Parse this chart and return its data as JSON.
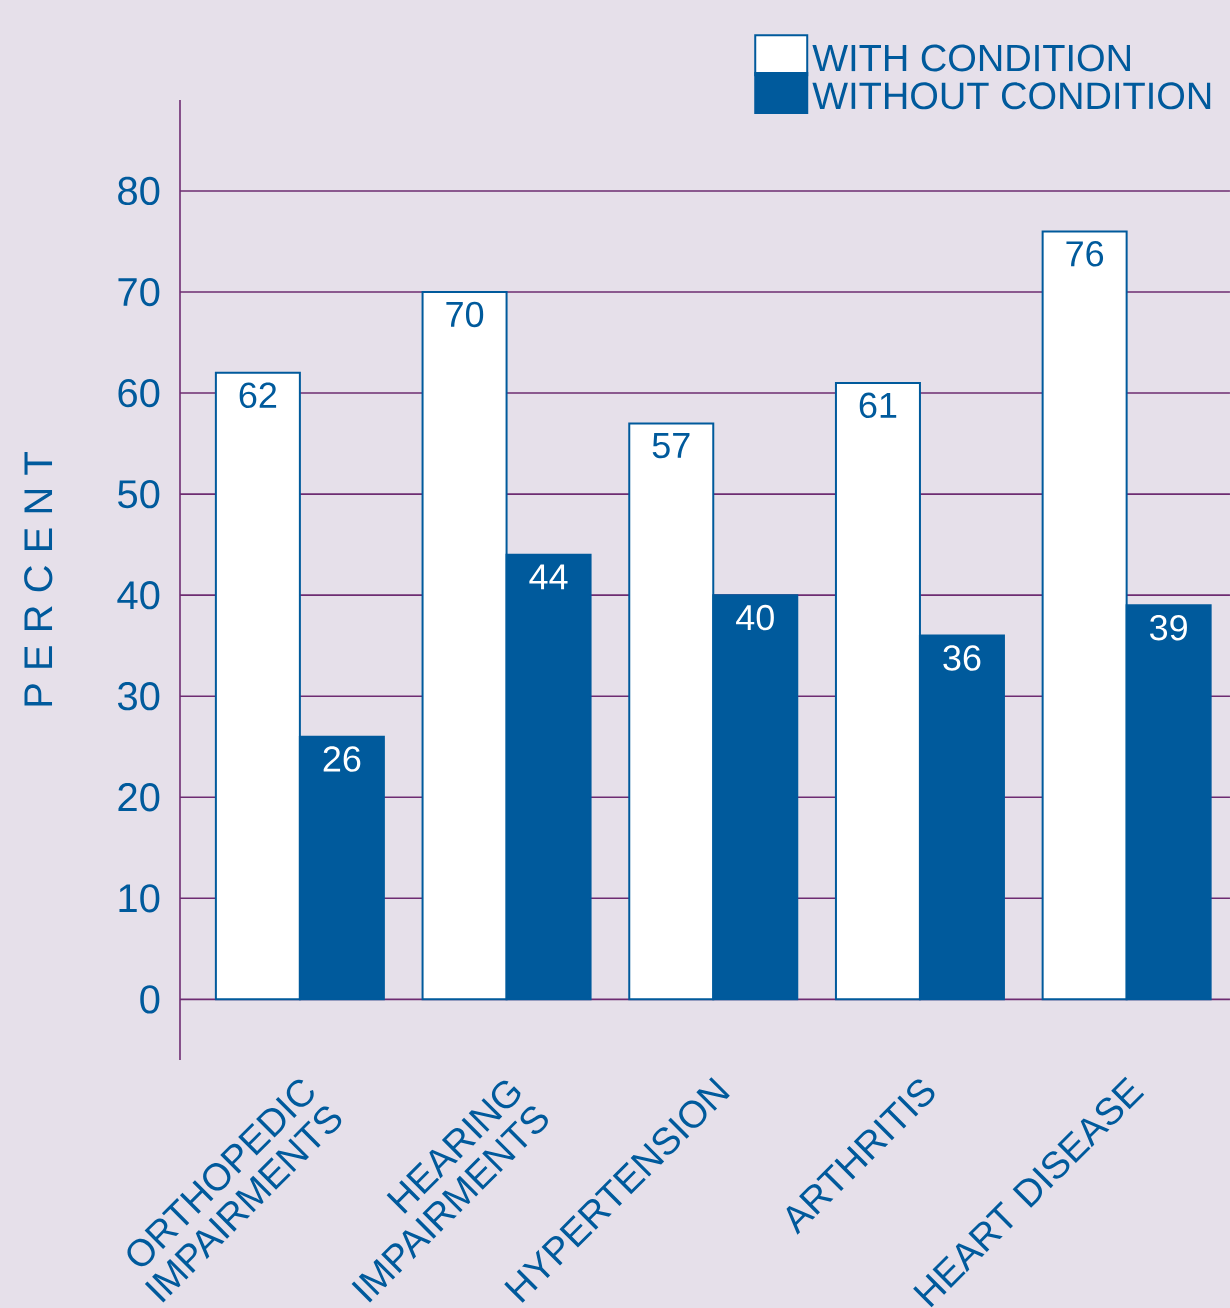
{
  "chart_data": {
    "type": "bar",
    "ylabel": "P E R C E N T",
    "categories": [
      "ORTHOPEDIC IMPAIRMENTS",
      "HEARING IMPAIRMENTS",
      "HYPERTENSION",
      "ARTHRITIS",
      "HEART DISEASE"
    ],
    "series": [
      {
        "name": "WITH CONDITION",
        "color": "#ffffff",
        "values": [
          62,
          70,
          57,
          61,
          76
        ]
      },
      {
        "name": "WITHOUT CONDITION",
        "color": "#005a9c",
        "values": [
          26,
          44,
          40,
          36,
          39
        ]
      }
    ],
    "ylim": [
      -6,
      89
    ],
    "yticks": [
      0,
      10,
      20,
      30,
      40,
      50,
      60,
      70,
      80
    ],
    "grid": "y",
    "legend": "top right",
    "data_labels": true
  }
}
